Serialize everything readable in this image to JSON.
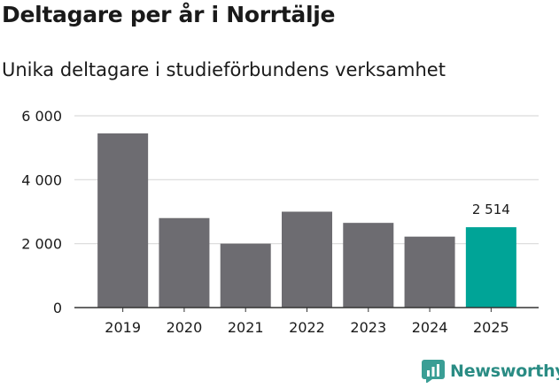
{
  "title": "Deltagare per år i Norrtälje",
  "subtitle": "Unika deltagare i studieförbundens verksamhet",
  "brand": {
    "name": "Newsworthy",
    "logo_icon": "newsworthy-logo-icon",
    "color": "#2a8c84"
  },
  "colors": {
    "bar": "#6d6c71",
    "highlight": "#00a497",
    "grid": "#d9d9d9",
    "axis": "#333333",
    "text": "#1a1a1a"
  },
  "chart_data": {
    "type": "bar",
    "categories": [
      "2019",
      "2020",
      "2021",
      "2022",
      "2023",
      "2024",
      "2025"
    ],
    "values": [
      5450,
      2800,
      2000,
      3000,
      2650,
      2220,
      2514
    ],
    "highlight_index": 6,
    "data_labels": [
      {
        "index": 6,
        "text": "2 514"
      }
    ],
    "ylim": [
      0,
      6000
    ],
    "yticks": [
      0,
      2000,
      4000,
      6000
    ],
    "ytick_labels": [
      "0",
      "2 000",
      "4 000",
      "6 000"
    ],
    "xlabel": "",
    "ylabel": "",
    "grid": true,
    "legend": "none"
  }
}
